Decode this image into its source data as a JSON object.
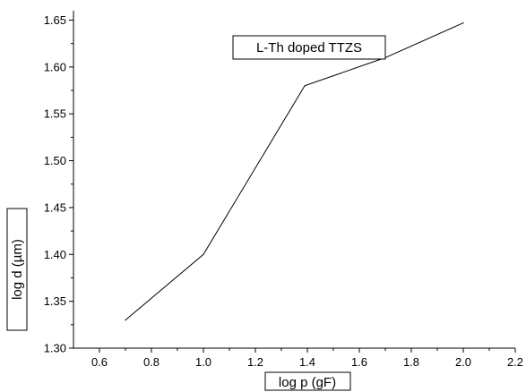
{
  "chart_data": {
    "type": "line",
    "title": "",
    "xlabel": "log p (gF)",
    "ylabel": "log d (µm)",
    "xlim": [
      0.5,
      2.2
    ],
    "ylim": [
      1.3,
      1.66
    ],
    "x_ticks": [
      "0.6",
      "0.8",
      "1.0",
      "1.2",
      "1.4",
      "1.6",
      "1.8",
      "2.0",
      "2.2"
    ],
    "y_ticks": [
      "1.30",
      "1.35",
      "1.40",
      "1.45",
      "1.50",
      "1.55",
      "1.60",
      "1.65"
    ],
    "grid": false,
    "legend_position": "top-center",
    "series": [
      {
        "name": "L-Th doped TTZS",
        "color": "#000000",
        "x": [
          0.7,
          1.0,
          1.39,
          1.7,
          2.0
        ],
        "y": [
          1.33,
          1.4,
          1.58,
          1.61,
          1.647
        ]
      }
    ]
  }
}
